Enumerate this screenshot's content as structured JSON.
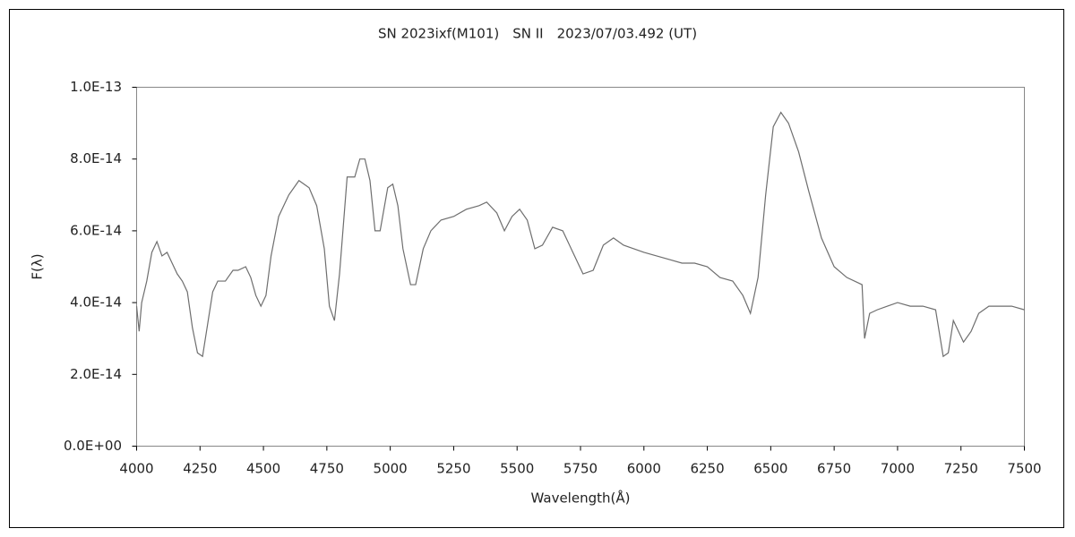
{
  "chart_data": {
    "type": "line",
    "title": "SN 2023ixf(M101)　SN II　2023/07/03.492 (UT)",
    "x_label": "Wavelength(Å)",
    "y_label": "F(λ)",
    "color": "#6e6e6e",
    "xlim": [
      4000,
      7500
    ],
    "xticks": [
      4000,
      4250,
      4500,
      4750,
      5000,
      5250,
      5500,
      5750,
      6000,
      6250,
      6500,
      6750,
      7000,
      7250,
      7500
    ],
    "ylim": [
      0,
      1e-13
    ],
    "yticks": [
      {
        "value": 0,
        "label": "0.0E+00"
      },
      {
        "value": 2e-14,
        "label": "2.0E-14"
      },
      {
        "value": 4e-14,
        "label": "4.0E-14"
      },
      {
        "value": 6e-14,
        "label": "6.0E-14"
      },
      {
        "value": 8e-14,
        "label": "8.0E-14"
      },
      {
        "value": 1e-13,
        "label": "1.0E-13"
      }
    ],
    "grid": false,
    "x": [
      4000,
      4010,
      4020,
      4040,
      4060,
      4080,
      4100,
      4120,
      4140,
      4160,
      4180,
      4200,
      4220,
      4240,
      4260,
      4280,
      4300,
      4320,
      4350,
      4380,
      4400,
      4430,
      4450,
      4470,
      4490,
      4510,
      4530,
      4560,
      4600,
      4640,
      4680,
      4710,
      4740,
      4760,
      4780,
      4800,
      4830,
      4860,
      4880,
      4900,
      4920,
      4940,
      4960,
      4990,
      5010,
      5030,
      5050,
      5080,
      5100,
      5130,
      5160,
      5200,
      5250,
      5300,
      5350,
      5380,
      5420,
      5450,
      5480,
      5510,
      5540,
      5570,
      5600,
      5640,
      5680,
      5720,
      5760,
      5800,
      5840,
      5880,
      5920,
      5960,
      6000,
      6050,
      6100,
      6150,
      6200,
      6250,
      6300,
      6350,
      6390,
      6420,
      6450,
      6480,
      6510,
      6540,
      6570,
      6610,
      6650,
      6700,
      6750,
      6800,
      6860,
      6870,
      6890,
      6920,
      6960,
      7000,
      7050,
      7100,
      7150,
      7180,
      7200,
      7220,
      7260,
      7290,
      7320,
      7360,
      7400,
      7450,
      7500
    ],
    "values": [
      3.9e-14,
      3.2e-14,
      4e-14,
      4.6e-14,
      5.4e-14,
      5.7e-14,
      5.3e-14,
      5.4e-14,
      5.1e-14,
      4.8e-14,
      4.6e-14,
      4.3e-14,
      3.3e-14,
      2.6e-14,
      2.5e-14,
      3.4e-14,
      4.3e-14,
      4.6e-14,
      4.6e-14,
      4.9e-14,
      4.9e-14,
      5e-14,
      4.7e-14,
      4.2e-14,
      3.9e-14,
      4.2e-14,
      5.3e-14,
      6.4e-14,
      7e-14,
      7.4e-14,
      7.2e-14,
      6.7e-14,
      5.5e-14,
      3.9e-14,
      3.5e-14,
      4.8e-14,
      7.5e-14,
      7.5e-14,
      8e-14,
      8e-14,
      7.4e-14,
      6e-14,
      6e-14,
      7.2e-14,
      7.3e-14,
      6.7e-14,
      5.5e-14,
      4.5e-14,
      4.5e-14,
      5.5e-14,
      6e-14,
      6.3e-14,
      6.4e-14,
      6.6e-14,
      6.7e-14,
      6.8e-14,
      6.5e-14,
      6e-14,
      6.4e-14,
      6.6e-14,
      6.3e-14,
      5.5e-14,
      5.6e-14,
      6.1e-14,
      6e-14,
      5.4e-14,
      4.8e-14,
      4.9e-14,
      5.6e-14,
      5.8e-14,
      5.6e-14,
      5.5e-14,
      5.4e-14,
      5.3e-14,
      5.2e-14,
      5.1e-14,
      5.1e-14,
      5e-14,
      4.7e-14,
      4.6e-14,
      4.2e-14,
      3.7e-14,
      4.7e-14,
      7e-14,
      8.9e-14,
      9.3e-14,
      9e-14,
      8.2e-14,
      7.1e-14,
      5.8e-14,
      5e-14,
      4.7e-14,
      4.5e-14,
      3e-14,
      3.7e-14,
      3.8e-14,
      3.9e-14,
      4e-14,
      3.9e-14,
      3.9e-14,
      3.8e-14,
      2.5e-14,
      2.6e-14,
      3.5e-14,
      2.9e-14,
      3.2e-14,
      3.7e-14,
      3.9e-14,
      3.9e-14,
      3.9e-14,
      3.8e-14
    ]
  }
}
